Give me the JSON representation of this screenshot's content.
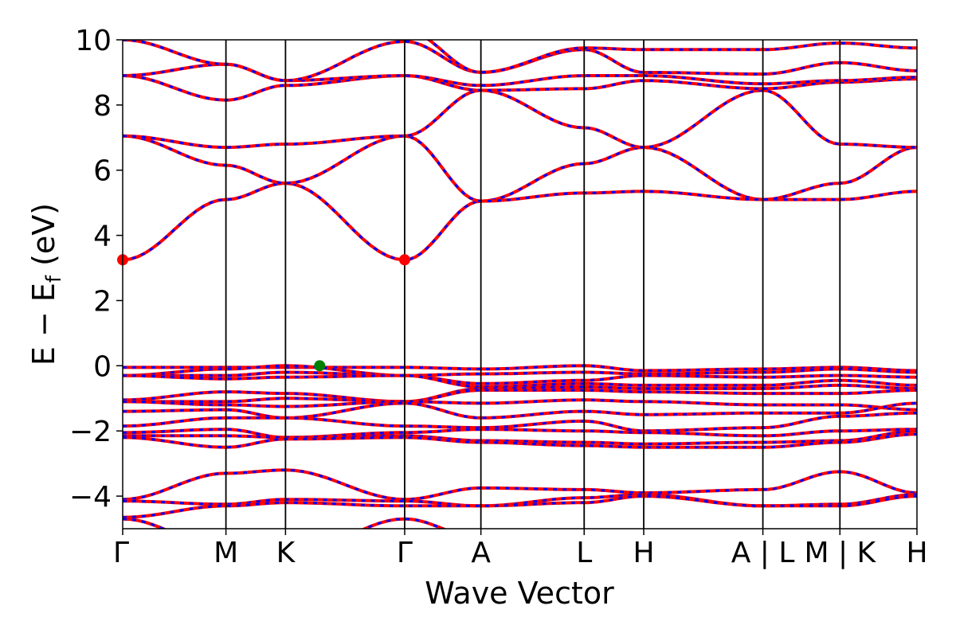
{
  "chart_data": {
    "type": "line",
    "title": "",
    "xlabel": "Wave Vector",
    "ylabel": "E − E",
    "ylabel_sub": "f",
    "ylabel_unit": " (eV)",
    "ylim": [
      -5,
      10
    ],
    "xlim": [
      0,
      1
    ],
    "y_ticks": [
      "10",
      "8",
      "6",
      "4",
      "2",
      "0",
      "−2",
      "−4"
    ],
    "y_tick_values": [
      10,
      8,
      6,
      4,
      2,
      0,
      -2,
      -4
    ],
    "kpoints": [
      {
        "label": "Γ",
        "x": 0.0
      },
      {
        "label": "M",
        "x": 0.13
      },
      {
        "label": "K",
        "x": 0.205
      },
      {
        "label": "Γ",
        "x": 0.355
      },
      {
        "label": "A",
        "x": 0.451
      },
      {
        "label": "L",
        "x": 0.581
      },
      {
        "label": "H",
        "x": 0.656
      },
      {
        "label": "A | L",
        "x": 0.806
      },
      {
        "label": "M | K",
        "x": 0.903
      },
      {
        "label": "H",
        "x": 1.0
      }
    ],
    "series": [
      {
        "color": "#ff0000",
        "style": "solid"
      },
      {
        "color": "#0000ff",
        "style": "dashed"
      }
    ],
    "markers": [
      {
        "x": 0.0,
        "y": 3.25,
        "color": "#ff0000"
      },
      {
        "x": 0.355,
        "y": 3.25,
        "color": "#ff0000"
      },
      {
        "x": 0.248,
        "y": 0.0,
        "color": "#008000"
      }
    ]
  }
}
